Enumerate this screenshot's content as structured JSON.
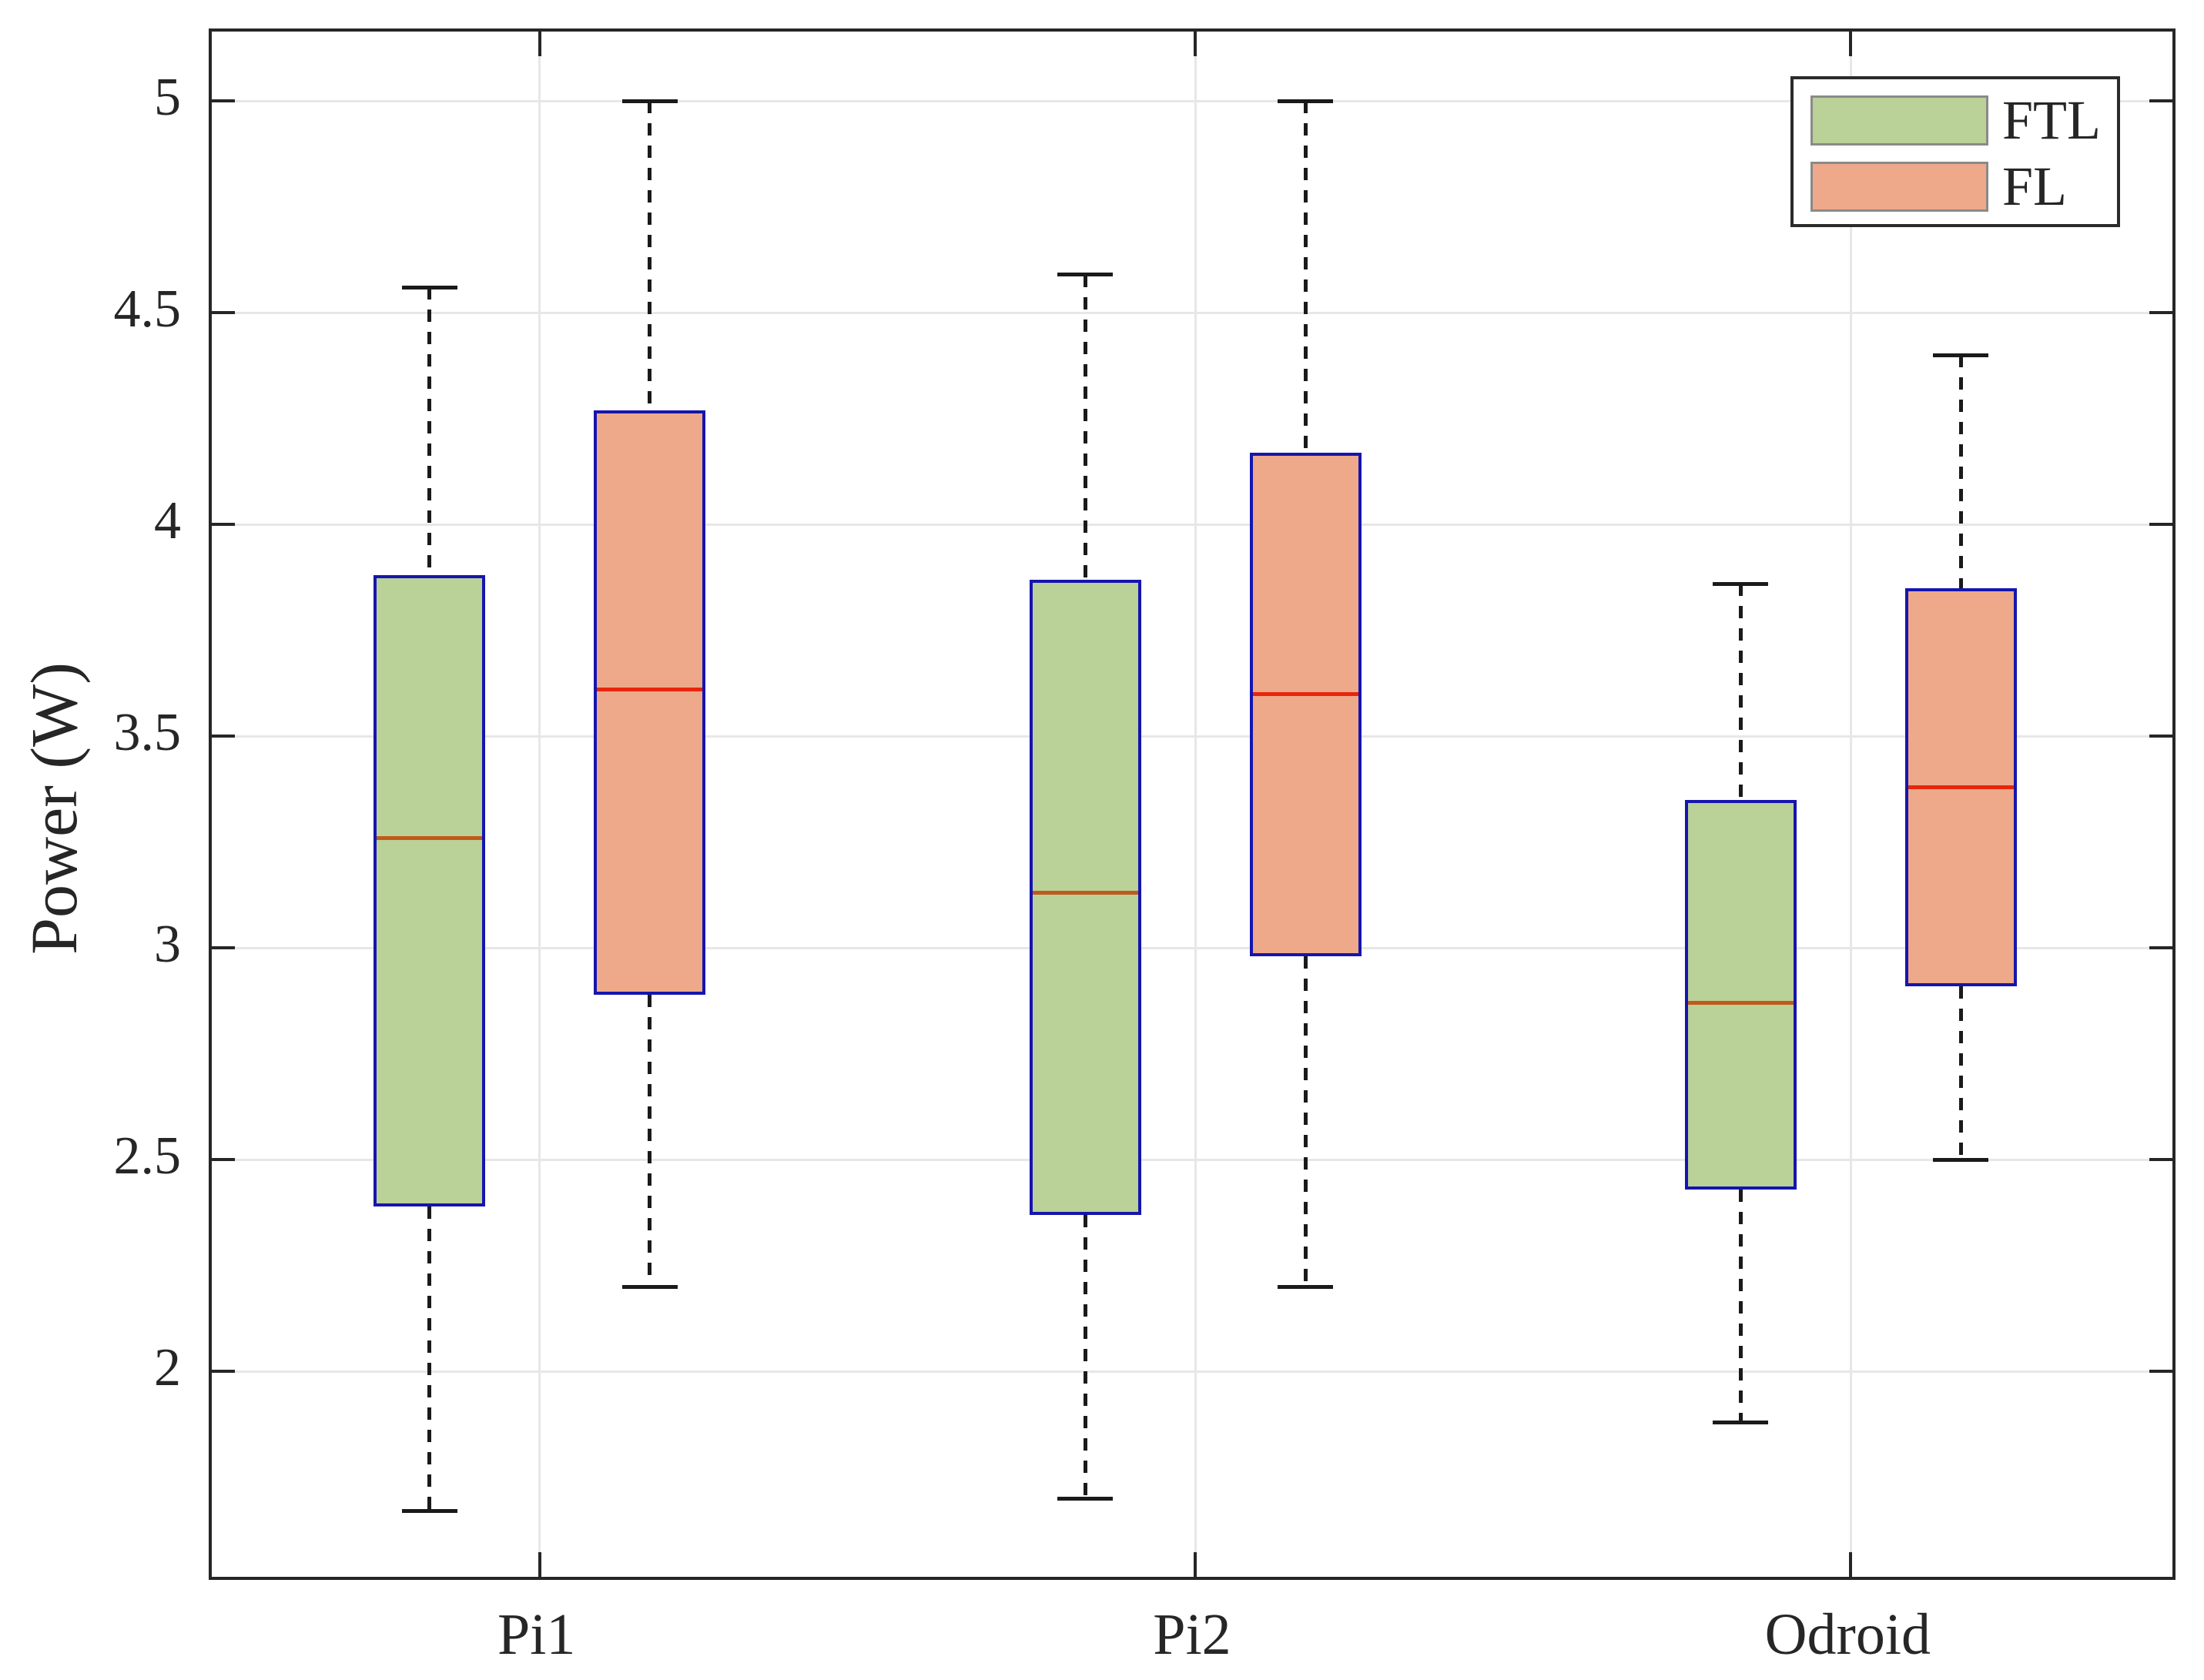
{
  "chart_data": {
    "type": "boxplot",
    "title": "",
    "ylabel": "Power (W)",
    "xlabel": "",
    "categories": [
      "Pi1",
      "Pi2",
      "Odroid"
    ],
    "series": [
      {
        "name": "FTL",
        "color": "#bad197",
        "median_color": "#bf5a1c",
        "boxes": [
          {
            "min": 1.67,
            "q1": 2.39,
            "median": 3.26,
            "q3": 3.88,
            "max": 4.56
          },
          {
            "min": 1.7,
            "q1": 2.37,
            "median": 3.13,
            "q3": 3.87,
            "max": 4.59
          },
          {
            "min": 1.88,
            "q1": 2.43,
            "median": 2.87,
            "q3": 3.35,
            "max": 3.86
          }
        ]
      },
      {
        "name": "FL",
        "color": "#eda98a",
        "median_color": "#e8250c",
        "boxes": [
          {
            "min": 2.2,
            "q1": 2.89,
            "median": 3.61,
            "q3": 4.27,
            "max": 5.0
          },
          {
            "min": 2.2,
            "q1": 2.98,
            "median": 3.6,
            "q3": 4.17,
            "max": 5.0
          },
          {
            "min": 2.5,
            "q1": 2.91,
            "median": 3.38,
            "q3": 3.85,
            "max": 4.4
          }
        ]
      }
    ],
    "ylim": [
      1.5,
      5.164
    ],
    "yticks": [
      2,
      2.5,
      3,
      3.5,
      4,
      4.5,
      5
    ],
    "ytick_labels": [
      "2",
      "2.5",
      "3",
      "3.5",
      "4",
      "4.5",
      "5"
    ],
    "grid": true,
    "legend_position": "top-right",
    "colors": {
      "box_edge": "#1515ae",
      "whisker": "#1a1a1a",
      "gridline": "#e7e7e7",
      "frame": "#262626"
    }
  }
}
